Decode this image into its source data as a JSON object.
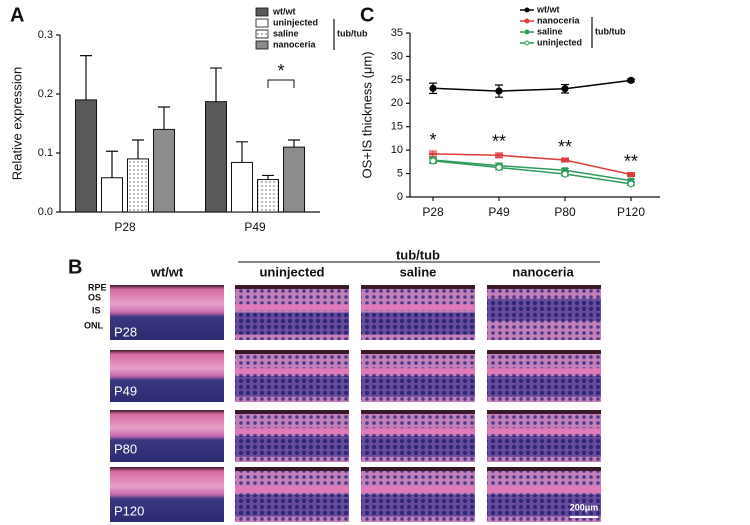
{
  "chart_data": [
    {
      "type": "bar",
      "panel_label": "A",
      "ylabel": "Relative expression",
      "categories": [
        "P28",
        "P49"
      ],
      "ylim": [
        0,
        0.3
      ],
      "yticks": [
        {
          "value": 0,
          "label": "0.0"
        },
        0.1,
        0.2,
        0.3
      ],
      "series": [
        {
          "name": "wt/wt",
          "color": "#595959",
          "values": [
            0.19,
            0.187
          ],
          "errors": [
            0.075,
            0.057
          ]
        },
        {
          "name": "uninjected",
          "color": "#ffffff",
          "values": [
            0.058,
            0.084
          ],
          "errors": [
            0.045,
            0.035
          ]
        },
        {
          "name": "saline",
          "color": "#ffffff",
          "pattern": "dots",
          "values": [
            0.09,
            0.055
          ],
          "errors": [
            0.032,
            0.007
          ]
        },
        {
          "name": "nanoceria",
          "color": "#8c8c8c",
          "values": [
            0.14,
            0.11
          ],
          "errors": [
            0.038,
            0.012
          ]
        }
      ],
      "group_label": "tub/tub",
      "annotation": "*"
    },
    {
      "type": "line",
      "panel_label": "C",
      "ylabel": "OS+IS thickness (μm)",
      "categories": [
        "P28",
        "P49",
        "P80",
        "P120"
      ],
      "ylim": [
        0,
        35
      ],
      "yticks": [
        0,
        5,
        10,
        15,
        20,
        25,
        30,
        35
      ],
      "series": [
        {
          "name": "wt/wt",
          "color": "#000000",
          "marker": "circle",
          "values": [
            23.2,
            22.6,
            23.1,
            24.9
          ],
          "errors": [
            1.1,
            1.3,
            0.9,
            0.3
          ]
        },
        {
          "name": "nanoceria",
          "color": "#e03c3c",
          "marker": "dash",
          "values": [
            9.2,
            8.9,
            7.9,
            4.8
          ],
          "errors": [
            0.6,
            0.5,
            0.4,
            0.4
          ]
        },
        {
          "name": "saline",
          "color": "#2e9b5a",
          "marker": "square",
          "values": [
            7.9,
            6.7,
            5.7,
            3.5
          ],
          "errors": [
            0.6,
            0.5,
            0.4,
            0.3
          ]
        },
        {
          "name": "uninjected",
          "color": "#2e9b5a",
          "marker": "open-circle",
          "values": [
            7.7,
            6.3,
            4.9,
            2.8
          ],
          "errors": [
            0.5,
            0.5,
            0.4,
            0.3
          ]
        }
      ],
      "group_label": "tub/tub",
      "annotations": [
        "*",
        "**",
        "**",
        "**"
      ]
    }
  ],
  "figure": {
    "panel_label": "B",
    "group_label": "tub/tub",
    "columns": [
      "wt/wt",
      "uninjected",
      "saline",
      "nanoceria"
    ],
    "layers": [
      "RPE",
      "OS",
      "IS",
      "ONL"
    ],
    "rows": [
      "P28",
      "P49",
      "P80",
      "P120"
    ],
    "scale_bar": "200μm"
  }
}
